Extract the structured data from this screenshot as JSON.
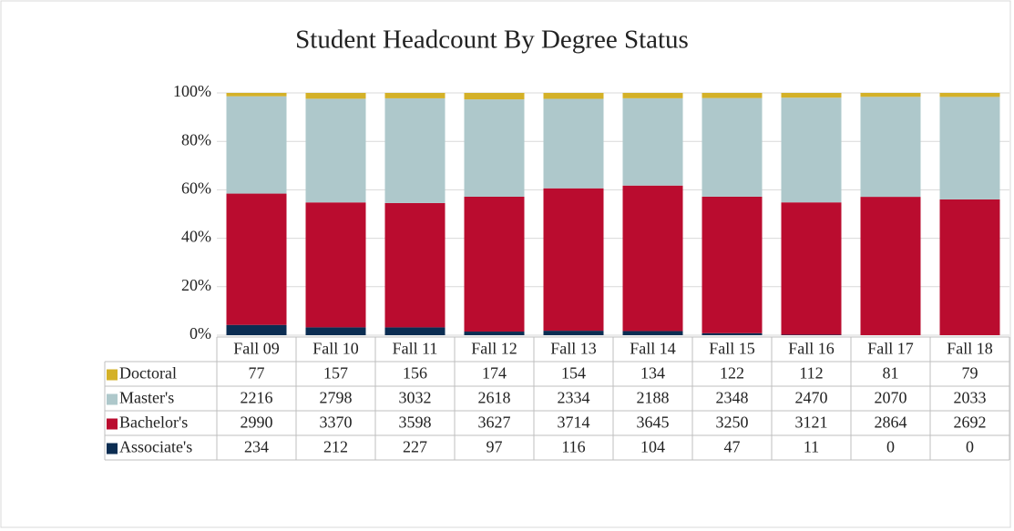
{
  "chart_data": {
    "type": "bar",
    "stacking": "percent",
    "title": "Student Headcount By Degree Status",
    "categories": [
      "Fall 09",
      "Fall 10",
      "Fall 11",
      "Fall 12",
      "Fall 13",
      "Fall 14",
      "Fall 15",
      "Fall 16",
      "Fall 17",
      "Fall 18"
    ],
    "series": [
      {
        "name": "Doctoral",
        "color": "#d4b128",
        "values": [
          77,
          157,
          156,
          174,
          154,
          134,
          122,
          112,
          81,
          79
        ]
      },
      {
        "name": "Master's",
        "color": "#aec8cb",
        "values": [
          2216,
          2798,
          3032,
          2618,
          2334,
          2188,
          2348,
          2470,
          2070,
          2033
        ]
      },
      {
        "name": "Bachelor's",
        "color": "#ba0c2f",
        "values": [
          2990,
          3370,
          3598,
          3627,
          3714,
          3645,
          3250,
          3121,
          2864,
          2692
        ]
      },
      {
        "name": "Associate's",
        "color": "#0b2d52",
        "values": [
          234,
          212,
          227,
          97,
          116,
          104,
          47,
          11,
          0,
          0
        ]
      }
    ],
    "ylim": [
      0,
      100
    ],
    "yticks": [
      {
        "value": 0,
        "label": "0%"
      },
      {
        "value": 20,
        "label": "20%"
      },
      {
        "value": 40,
        "label": "40%"
      },
      {
        "value": 60,
        "label": "60%"
      },
      {
        "value": 80,
        "label": "80%"
      },
      {
        "value": 100,
        "label": "100%"
      }
    ],
    "grid": true
  }
}
